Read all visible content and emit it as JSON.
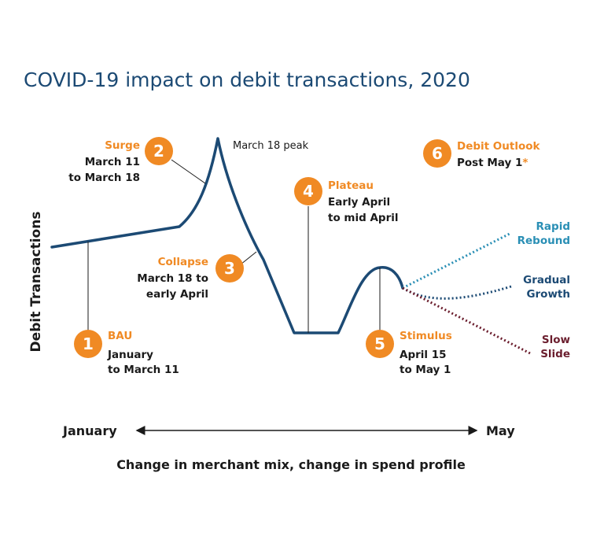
{
  "title": "COVID-19 impact on debit transactions, 2020",
  "y_label": "Debit Transactions",
  "x_axis": {
    "start": "January",
    "end": "May",
    "label": "Change in merchant mix, change in spend profile"
  },
  "peak_label": "March 18 peak",
  "phases": [
    {
      "number": "1",
      "title": "BAU",
      "lines": [
        "January",
        "to March 11"
      ]
    },
    {
      "number": "2",
      "title": "Surge",
      "lines": [
        "March 11",
        "to March 18"
      ]
    },
    {
      "number": "3",
      "title": "Collapse",
      "lines": [
        "March 18 to",
        "early April"
      ]
    },
    {
      "number": "4",
      "title": "Plateau",
      "lines": [
        "Early April",
        "to mid April"
      ]
    },
    {
      "number": "5",
      "title": "Stimulus",
      "lines": [
        "April 15",
        "to May 1"
      ]
    },
    {
      "number": "6",
      "title": "Debit Outlook",
      "lines": [
        "Post May 1"
      ],
      "footnote_mark": "*"
    }
  ],
  "outcomes": [
    {
      "lines": [
        "Rapid",
        "Rebound"
      ],
      "color": "#2a8fb5"
    },
    {
      "lines": [
        "Gradual",
        "Growth"
      ],
      "color": "#1c4a74"
    },
    {
      "lines": [
        "Slow",
        "Slide"
      ],
      "color": "#6b1e2e"
    }
  ],
  "colors": {
    "main_line": "#1c4a74",
    "accent": "#f08a24",
    "title": "#1c4a74"
  }
}
